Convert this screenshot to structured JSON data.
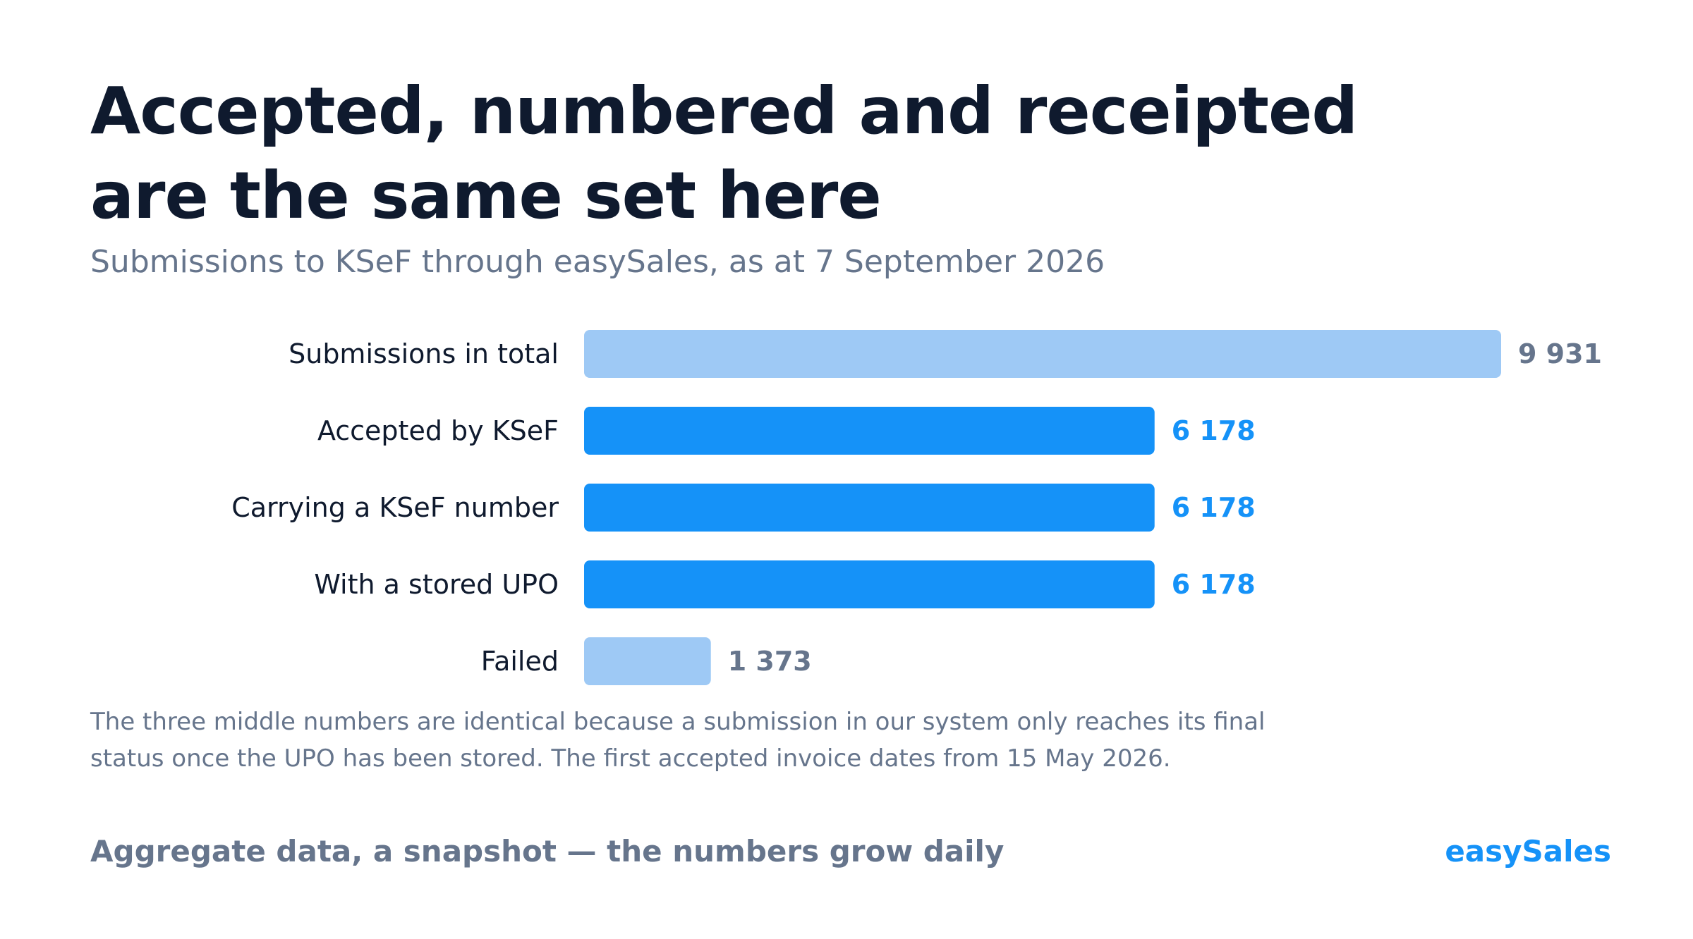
{
  "header": {
    "title": "Accepted, numbered and receipted are the same set here",
    "subtitle": "Submissions to KSeF through easySales, as at 7 September 2026"
  },
  "chart_data": {
    "type": "bar",
    "orientation": "horizontal",
    "categories": [
      "Submissions in total",
      "Accepted by KSeF",
      "Carrying a KSeF number",
      "With a stored UPO",
      "Failed"
    ],
    "values": [
      9931,
      6178,
      6178,
      6178,
      1373
    ],
    "value_labels": [
      "9 931",
      "6 178",
      "6 178",
      "6 178",
      "1 373"
    ],
    "highlighted": [
      false,
      true,
      true,
      true,
      false
    ],
    "colors": {
      "bar_muted": "#9ec9f5",
      "bar_accent": "#1592f8",
      "label_muted": "#66758c",
      "label_accent": "#1592f8"
    },
    "xlim": [
      0,
      9931
    ],
    "grid": false,
    "legend": "none"
  },
  "footnote": "The three middle numbers are identical because a submission in our system only reaches its final status once the UPO has been stored. The first accepted invoice dates from 15 May 2026.",
  "footer": {
    "caption": "Aggregate data, a snapshot — the numbers grow daily",
    "brand": "easySales"
  }
}
